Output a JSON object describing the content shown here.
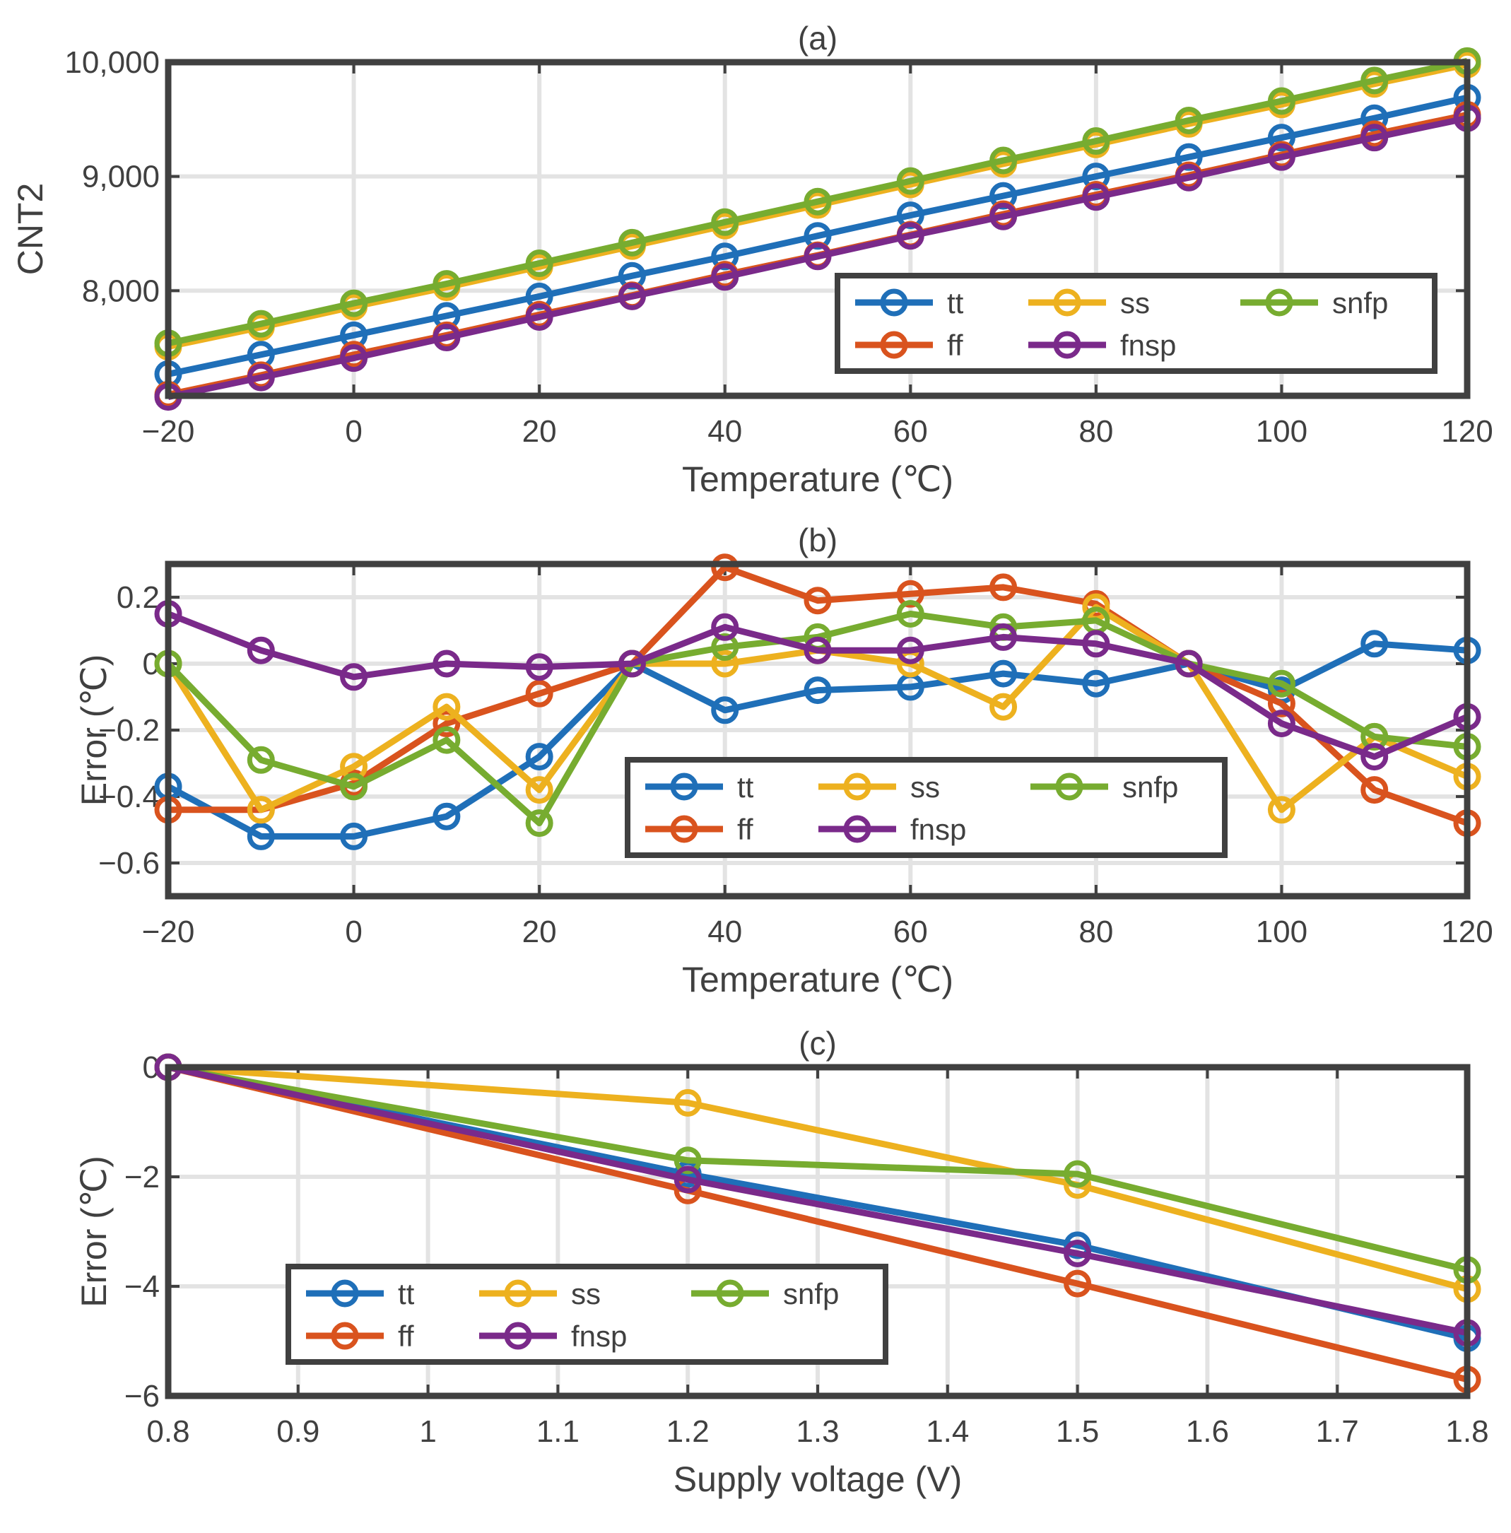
{
  "colors": {
    "tt": "#1f6fb8",
    "ff": "#d9531e",
    "ss": "#edb11f",
    "snfp": "#77ac30",
    "fnsp": "#7a2a8a",
    "axis": "#404040",
    "grid": "#e3e3e3"
  },
  "chart_data": [
    {
      "type": "line",
      "title": "(a)",
      "xlabel": "Temperature (℃)",
      "ylabel": "CNT2",
      "xlim": [
        -20,
        120
      ],
      "ylim": [
        7080,
        10000
      ],
      "xticks": [
        -20,
        0,
        20,
        40,
        60,
        80,
        100,
        120
      ],
      "xtick_labels": [
        "−20",
        "0",
        "20",
        "40",
        "60",
        "80",
        "100",
        "120"
      ],
      "yticks": [
        8000,
        9000,
        10000
      ],
      "ytick_labels": [
        "8,000",
        "9,000",
        "10,000"
      ],
      "grid": true,
      "legend_location": "bottom-right",
      "x": [
        -20,
        -10,
        0,
        10,
        20,
        30,
        40,
        50,
        60,
        70,
        80,
        90,
        100,
        110,
        120
      ],
      "series": [
        {
          "name": "tt",
          "values": [
            7270,
            7440,
            7610,
            7780,
            7950,
            8130,
            8300,
            8480,
            8660,
            8830,
            9000,
            9170,
            9340,
            9510,
            9690
          ]
        },
        {
          "name": "ff",
          "values": [
            7090,
            7260,
            7440,
            7610,
            7790,
            7960,
            8140,
            8310,
            8490,
            8670,
            8840,
            9010,
            9190,
            9370,
            9540
          ]
        },
        {
          "name": "ss",
          "values": [
            7510,
            7680,
            7860,
            8030,
            8210,
            8390,
            8570,
            8750,
            8930,
            9110,
            9280,
            9460,
            9630,
            9810,
            9980
          ]
        },
        {
          "name": "snfp",
          "values": [
            7540,
            7710,
            7890,
            8060,
            8240,
            8420,
            8600,
            8780,
            8960,
            9140,
            9310,
            9490,
            9660,
            9840,
            10010
          ]
        },
        {
          "name": "fnsp",
          "values": [
            7070,
            7240,
            7410,
            7590,
            7770,
            7950,
            8120,
            8300,
            8480,
            8650,
            8820,
            8990,
            9170,
            9340,
            9510
          ]
        }
      ]
    },
    {
      "type": "line",
      "title": "(b)",
      "xlabel": "Temperature (℃)",
      "ylabel": "Error (℃)",
      "xlim": [
        -20,
        120
      ],
      "ylim": [
        -0.7,
        0.3
      ],
      "xticks": [
        -20,
        0,
        20,
        40,
        60,
        80,
        100,
        120
      ],
      "xtick_labels": [
        "−20",
        "0",
        "20",
        "40",
        "60",
        "80",
        "100",
        "120"
      ],
      "yticks": [
        -0.6,
        -0.4,
        -0.2,
        0,
        0.2
      ],
      "ytick_labels": [
        "−0.6",
        "−0.4",
        "−0.2",
        "0",
        "0.2"
      ],
      "grid": true,
      "legend_location": "bottom-center",
      "x": [
        -20,
        -10,
        0,
        10,
        20,
        30,
        40,
        50,
        60,
        70,
        80,
        90,
        100,
        110,
        120
      ],
      "series": [
        {
          "name": "tt",
          "values": [
            -0.37,
            -0.52,
            -0.52,
            -0.46,
            -0.28,
            0,
            -0.14,
            -0.08,
            -0.07,
            -0.03,
            -0.06,
            0,
            -0.08,
            0.06,
            0.04
          ]
        },
        {
          "name": "ff",
          "values": [
            -0.44,
            -0.44,
            -0.36,
            -0.18,
            -0.09,
            0,
            0.29,
            0.19,
            0.21,
            0.23,
            0.18,
            0,
            -0.12,
            -0.38,
            -0.48
          ]
        },
        {
          "name": "ss",
          "values": [
            0,
            -0.44,
            -0.31,
            -0.13,
            -0.38,
            0,
            0,
            0.04,
            0,
            -0.13,
            0.17,
            0,
            -0.44,
            -0.22,
            -0.34
          ]
        },
        {
          "name": "snfp",
          "values": [
            0,
            -0.29,
            -0.37,
            -0.23,
            -0.48,
            0,
            0.05,
            0.08,
            0.15,
            0.11,
            0.13,
            0,
            -0.06,
            -0.22,
            -0.25
          ]
        },
        {
          "name": "fnsp",
          "values": [
            0.15,
            0.04,
            -0.04,
            0,
            -0.01,
            0,
            0.11,
            0.04,
            0.04,
            0.08,
            0.06,
            0,
            -0.18,
            -0.28,
            -0.16
          ]
        }
      ]
    },
    {
      "type": "line",
      "title": "(c)",
      "xlabel": "Supply voltage (V)",
      "ylabel": "Error (℃)",
      "xlim": [
        0.8,
        1.8
      ],
      "ylim": [
        -6,
        0
      ],
      "xticks": [
        0.8,
        0.9,
        1,
        1.1,
        1.2,
        1.3,
        1.4,
        1.5,
        1.6,
        1.7,
        1.8
      ],
      "xtick_labels": [
        "0.8",
        "0.9",
        "1",
        "1.1",
        "1.2",
        "1.3",
        "1.4",
        "1.5",
        "1.6",
        "1.7",
        "1.8"
      ],
      "yticks": [
        -6,
        -4,
        -2,
        0
      ],
      "ytick_labels": [
        "−6",
        "−4",
        "−2",
        "0"
      ],
      "grid": true,
      "legend_location": "bottom-left",
      "x": [
        0.8,
        1.2,
        1.5,
        1.8
      ],
      "series": [
        {
          "name": "tt",
          "values": [
            0,
            -1.95,
            -3.25,
            -4.95
          ]
        },
        {
          "name": "ff",
          "values": [
            0,
            -2.25,
            -3.95,
            -5.7
          ]
        },
        {
          "name": "ss",
          "values": [
            0,
            -0.65,
            -2.15,
            -4.05
          ]
        },
        {
          "name": "snfp",
          "values": [
            0,
            -1.7,
            -1.95,
            -3.7
          ]
        },
        {
          "name": "fnsp",
          "values": [
            0,
            -2.05,
            -3.4,
            -4.85
          ]
        }
      ]
    }
  ]
}
